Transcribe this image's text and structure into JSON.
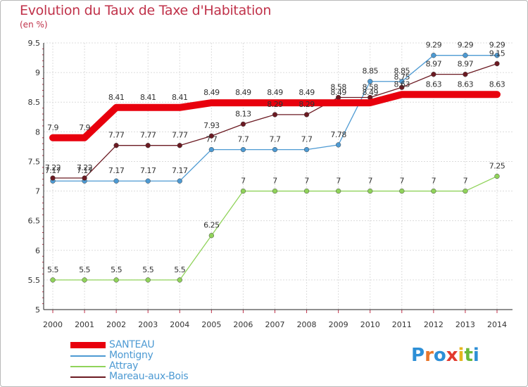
{
  "chart_data": {
    "type": "line",
    "title": "Evolution du Taux de Taxe d'Habitation",
    "unit": "(en %)",
    "ylim": [
      5,
      9.5
    ],
    "yticks": [
      "5",
      "5.5",
      "6",
      "6.5",
      "7",
      "7.5",
      "8",
      "8.5",
      "9",
      "9.5"
    ],
    "x": [
      "2000",
      "2001",
      "2002",
      "2003",
      "2004",
      "2005",
      "2006",
      "2007",
      "2008",
      "2009",
      "2010",
      "2011",
      "2012",
      "2013",
      "2014"
    ],
    "grid": true,
    "legend_position": "bottom-left",
    "series": [
      {
        "name": "SANTEAU",
        "color": "#e8000d",
        "values": [
          7.9,
          7.9,
          8.41,
          8.41,
          8.41,
          8.49,
          8.49,
          8.49,
          8.49,
          8.49,
          8.49,
          8.63,
          8.63,
          8.63,
          8.63
        ],
        "labels": [
          "7.9",
          "7.9",
          "8.41",
          "8.41",
          "8.41",
          "8.49",
          "8.49",
          "8.49",
          "8.49",
          "8.49",
          "8.49",
          "8.63",
          "8.63",
          "8.63",
          "8.63"
        ]
      },
      {
        "name": "Montigny",
        "color": "#4d9ad3",
        "values": [
          7.17,
          7.17,
          7.17,
          7.17,
          7.17,
          7.7,
          7.7,
          7.7,
          7.7,
          7.78,
          8.85,
          8.85,
          9.29,
          9.29,
          9.29
        ],
        "labels": [
          "7.17",
          "7.17",
          "7.17",
          "7.17",
          "7.17",
          "7.7",
          "7.7",
          "7.7",
          "7.7",
          "7.78",
          "8.85",
          "8.85",
          "9.29",
          "9.29",
          "9.29"
        ]
      },
      {
        "name": "Attray",
        "color": "#90d35a",
        "values": [
          5.5,
          5.5,
          5.5,
          5.5,
          5.5,
          6.25,
          7,
          7,
          7,
          7,
          7,
          7,
          7,
          7,
          7.25
        ],
        "labels": [
          "5.5",
          "5.5",
          "5.5",
          "5.5",
          "5.5",
          "6.25",
          "7",
          "7",
          "7",
          "7",
          "7",
          "7",
          "7",
          "7",
          "7.25"
        ]
      },
      {
        "name": "Mareau-aux-Bois",
        "color": "#6b1a22",
        "values": [
          7.22,
          7.22,
          7.77,
          7.77,
          7.77,
          7.93,
          8.13,
          8.29,
          8.29,
          8.58,
          8.58,
          8.75,
          8.97,
          8.97,
          9.15
        ],
        "labels": [
          "7.22",
          "7.22",
          "7.77",
          "7.77",
          "7.77",
          "7.93",
          "8.13",
          "8.29",
          "8.29",
          "8.58",
          "8.58",
          "8.75",
          "8.97",
          "8.97",
          "9.15"
        ]
      }
    ]
  },
  "logo": {
    "text": "Proxiti"
  }
}
